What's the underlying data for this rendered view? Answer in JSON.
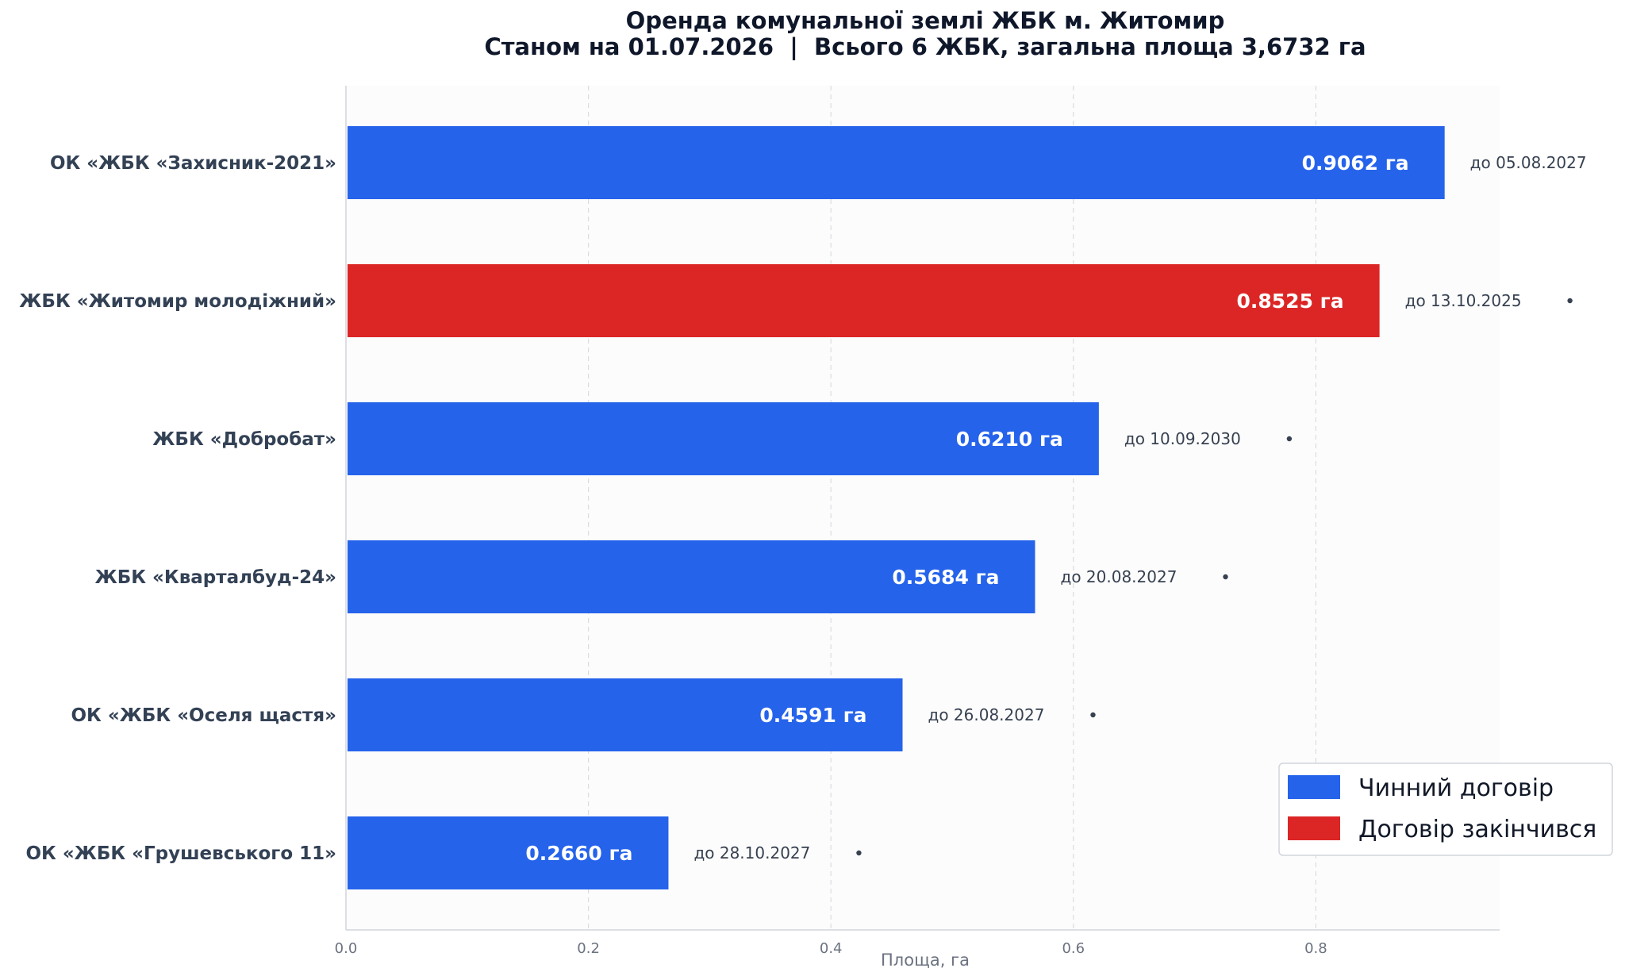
{
  "chart_data": {
    "type": "bar",
    "orientation": "horizontal",
    "title": "Оренда комунальної землі ЖБК м. Житомир",
    "subtitle": "Станом на 01.07.2026  |  Всього 6 ЖБК, загальна площа 3,6732 га",
    "xlabel": "Площа, га",
    "ylabel": "",
    "xlim": [
      0,
      0.95
    ],
    "xticks": [
      "0.0",
      "0.2",
      "0.4",
      "0.6",
      "0.8"
    ],
    "grid": "vertical dashed",
    "legend_position": "bottom-right",
    "legend": [
      {
        "label": "Чинний договір",
        "color": "#2563eb"
      },
      {
        "label": "Договір закінчився",
        "color": "#dc2626"
      }
    ],
    "bars": [
      {
        "category": "ОК «ЖБК «Захисник-2021»",
        "value": 0.9062,
        "value_label": "0.9062 га",
        "date_label": "до 05.08.2027",
        "status": "active",
        "color": "#2563eb"
      },
      {
        "category": "ЖБК «Житомир молодіжний»",
        "value": 0.8525,
        "value_label": "0.8525 га",
        "date_label": "до 13.10.2025",
        "status": "expired",
        "color": "#dc2626"
      },
      {
        "category": "ЖБК «Добробат»",
        "value": 0.621,
        "value_label": "0.6210 га",
        "date_label": "до 10.09.2030",
        "status": "active",
        "color": "#2563eb"
      },
      {
        "category": "ЖБК «Кварталбуд-24»",
        "value": 0.5684,
        "value_label": "0.5684 га",
        "date_label": "до 20.08.2027",
        "status": "active",
        "color": "#2563eb"
      },
      {
        "category": "ОК «ЖБК «Оселя щастя»",
        "value": 0.4591,
        "value_label": "0.4591 га",
        "date_label": "до 26.08.2027",
        "status": "active",
        "color": "#2563eb"
      },
      {
        "category": "ОК «ЖБК «Грушевського 11»",
        "value": 0.266,
        "value_label": "0.2660 га",
        "date_label": "до 28.10.2027",
        "status": "active",
        "color": "#2563eb"
      }
    ]
  }
}
